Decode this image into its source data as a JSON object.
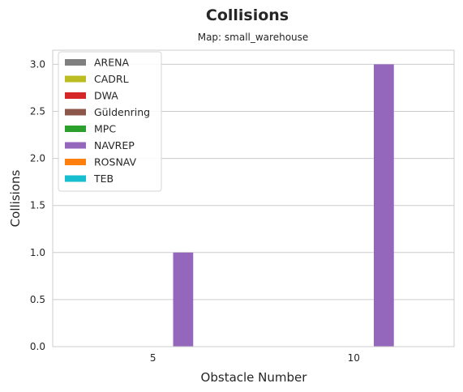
{
  "chart_data": {
    "type": "bar",
    "title": "Collisions",
    "subtitle": "Map: small_warehouse",
    "xlabel": "Obstacle Number",
    "ylabel": "Collisions",
    "categories": [
      "5",
      "10"
    ],
    "ylim": [
      0,
      3.15
    ],
    "yticks": [
      "0.0",
      "0.5",
      "1.0",
      "1.5",
      "2.0",
      "2.5",
      "3.0"
    ],
    "grid": true,
    "legend_position": "top-left",
    "series": [
      {
        "name": "ARENA",
        "color": "#7f7f7f",
        "values": [
          0,
          0
        ]
      },
      {
        "name": "CADRL",
        "color": "#bcbd22",
        "values": [
          0,
          0
        ]
      },
      {
        "name": "DWA",
        "color": "#d62728",
        "values": [
          0,
          0
        ]
      },
      {
        "name": "Güldenring",
        "color": "#8c564b",
        "values": [
          0,
          0
        ]
      },
      {
        "name": "MPC",
        "color": "#2ca02c",
        "values": [
          0,
          0
        ]
      },
      {
        "name": "NAVREP",
        "color": "#9467bd",
        "values": [
          1,
          3
        ]
      },
      {
        "name": "ROSNAV",
        "color": "#ff7f0e",
        "values": [
          0,
          0
        ]
      },
      {
        "name": "TEB",
        "color": "#17becf",
        "values": [
          0,
          0
        ]
      }
    ]
  }
}
